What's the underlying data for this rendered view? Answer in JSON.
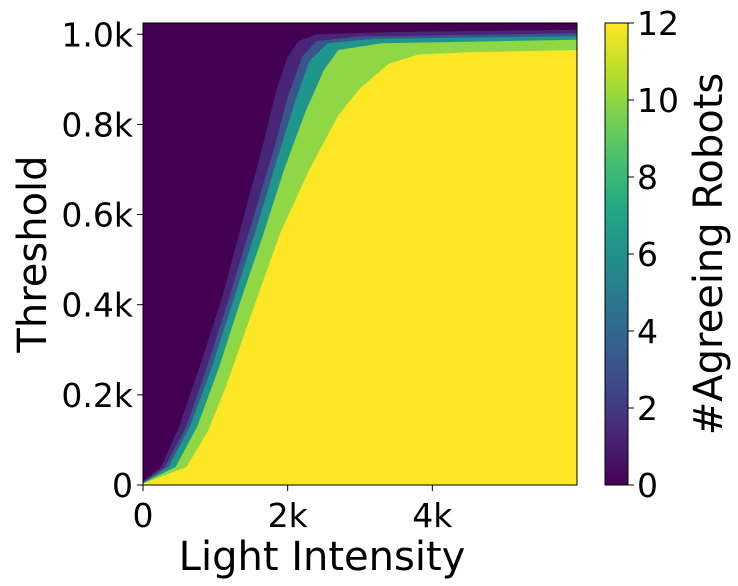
{
  "chart_data": {
    "type": "heatmap",
    "title": "",
    "xlabel": "Light Intensity",
    "ylabel": "Threshold",
    "xlim": [
      0,
      6000
    ],
    "ylim": [
      0,
      1025
    ],
    "x_ticks": [
      {
        "value": 0,
        "label": "0"
      },
      {
        "value": 2000,
        "label": "2k"
      },
      {
        "value": 4000,
        "label": "4k"
      }
    ],
    "y_ticks": [
      {
        "value": 0,
        "label": "0"
      },
      {
        "value": 200,
        "label": "0.2k"
      },
      {
        "value": 400,
        "label": "0.4k"
      },
      {
        "value": 600,
        "label": "0.6k"
      },
      {
        "value": 800,
        "label": "0.8k"
      },
      {
        "value": 1000,
        "label": "1.0k"
      }
    ],
    "colorbar": {
      "label": "#Agreeing Robots",
      "range": [
        0,
        12
      ],
      "ticks": [
        0,
        2,
        4,
        6,
        8,
        10,
        12
      ],
      "colormap": "viridis"
    },
    "contours": [
      {
        "level": 0,
        "color": "#440154",
        "boundary": [
          [
            0,
            0
          ],
          [
            6000,
            0
          ],
          [
            6000,
            1025
          ],
          [
            0,
            1025
          ]
        ]
      },
      {
        "level": 1,
        "color": "#482576",
        "boundary": [
          [
            0,
            8
          ],
          [
            250,
            40
          ],
          [
            500,
            130
          ],
          [
            800,
            270
          ],
          [
            1100,
            420
          ],
          [
            1400,
            600
          ],
          [
            1650,
            750
          ],
          [
            1850,
            880
          ],
          [
            2000,
            950
          ],
          [
            2150,
            985
          ],
          [
            2400,
            1000
          ],
          [
            3500,
            1005
          ],
          [
            6000,
            1010
          ],
          [
            6000,
            0
          ],
          [
            0,
            0
          ]
        ]
      },
      {
        "level": 3,
        "color": "#39568c",
        "boundary": [
          [
            0,
            6
          ],
          [
            300,
            40
          ],
          [
            600,
            130
          ],
          [
            900,
            270
          ],
          [
            1200,
            420
          ],
          [
            1500,
            580
          ],
          [
            1800,
            740
          ],
          [
            2000,
            860
          ],
          [
            2200,
            950
          ],
          [
            2400,
            985
          ],
          [
            3000,
            995
          ],
          [
            6000,
            1002
          ],
          [
            6000,
            0
          ],
          [
            0,
            0
          ]
        ]
      },
      {
        "level": 5,
        "color": "#1f968b",
        "boundary": [
          [
            0,
            5
          ],
          [
            350,
            40
          ],
          [
            650,
            130
          ],
          [
            950,
            260
          ],
          [
            1250,
            410
          ],
          [
            1550,
            560
          ],
          [
            1850,
            720
          ],
          [
            2100,
            850
          ],
          [
            2300,
            940
          ],
          [
            2550,
            980
          ],
          [
            3200,
            990
          ],
          [
            6000,
            996
          ],
          [
            6000,
            0
          ],
          [
            0,
            0
          ]
        ]
      },
      {
        "level": 9,
        "color": "#8fd744",
        "boundary": [
          [
            0,
            4
          ],
          [
            450,
            40
          ],
          [
            750,
            130
          ],
          [
            1050,
            260
          ],
          [
            1350,
            410
          ],
          [
            1650,
            550
          ],
          [
            1950,
            700
          ],
          [
            2250,
            830
          ],
          [
            2500,
            920
          ],
          [
            2700,
            965
          ],
          [
            3300,
            980
          ],
          [
            6000,
            988
          ],
          [
            6000,
            0
          ],
          [
            0,
            0
          ]
        ]
      },
      {
        "level": 12,
        "color": "#fde725",
        "boundary": [
          [
            0,
            3
          ],
          [
            600,
            40
          ],
          [
            900,
            120
          ],
          [
            1150,
            220
          ],
          [
            1500,
            380
          ],
          [
            1900,
            560
          ],
          [
            2300,
            700
          ],
          [
            2700,
            820
          ],
          [
            3000,
            880
          ],
          [
            3400,
            935
          ],
          [
            3800,
            955
          ],
          [
            4500,
            960
          ],
          [
            6000,
            965
          ],
          [
            6000,
            0
          ],
          [
            0,
            0
          ]
        ]
      }
    ]
  }
}
